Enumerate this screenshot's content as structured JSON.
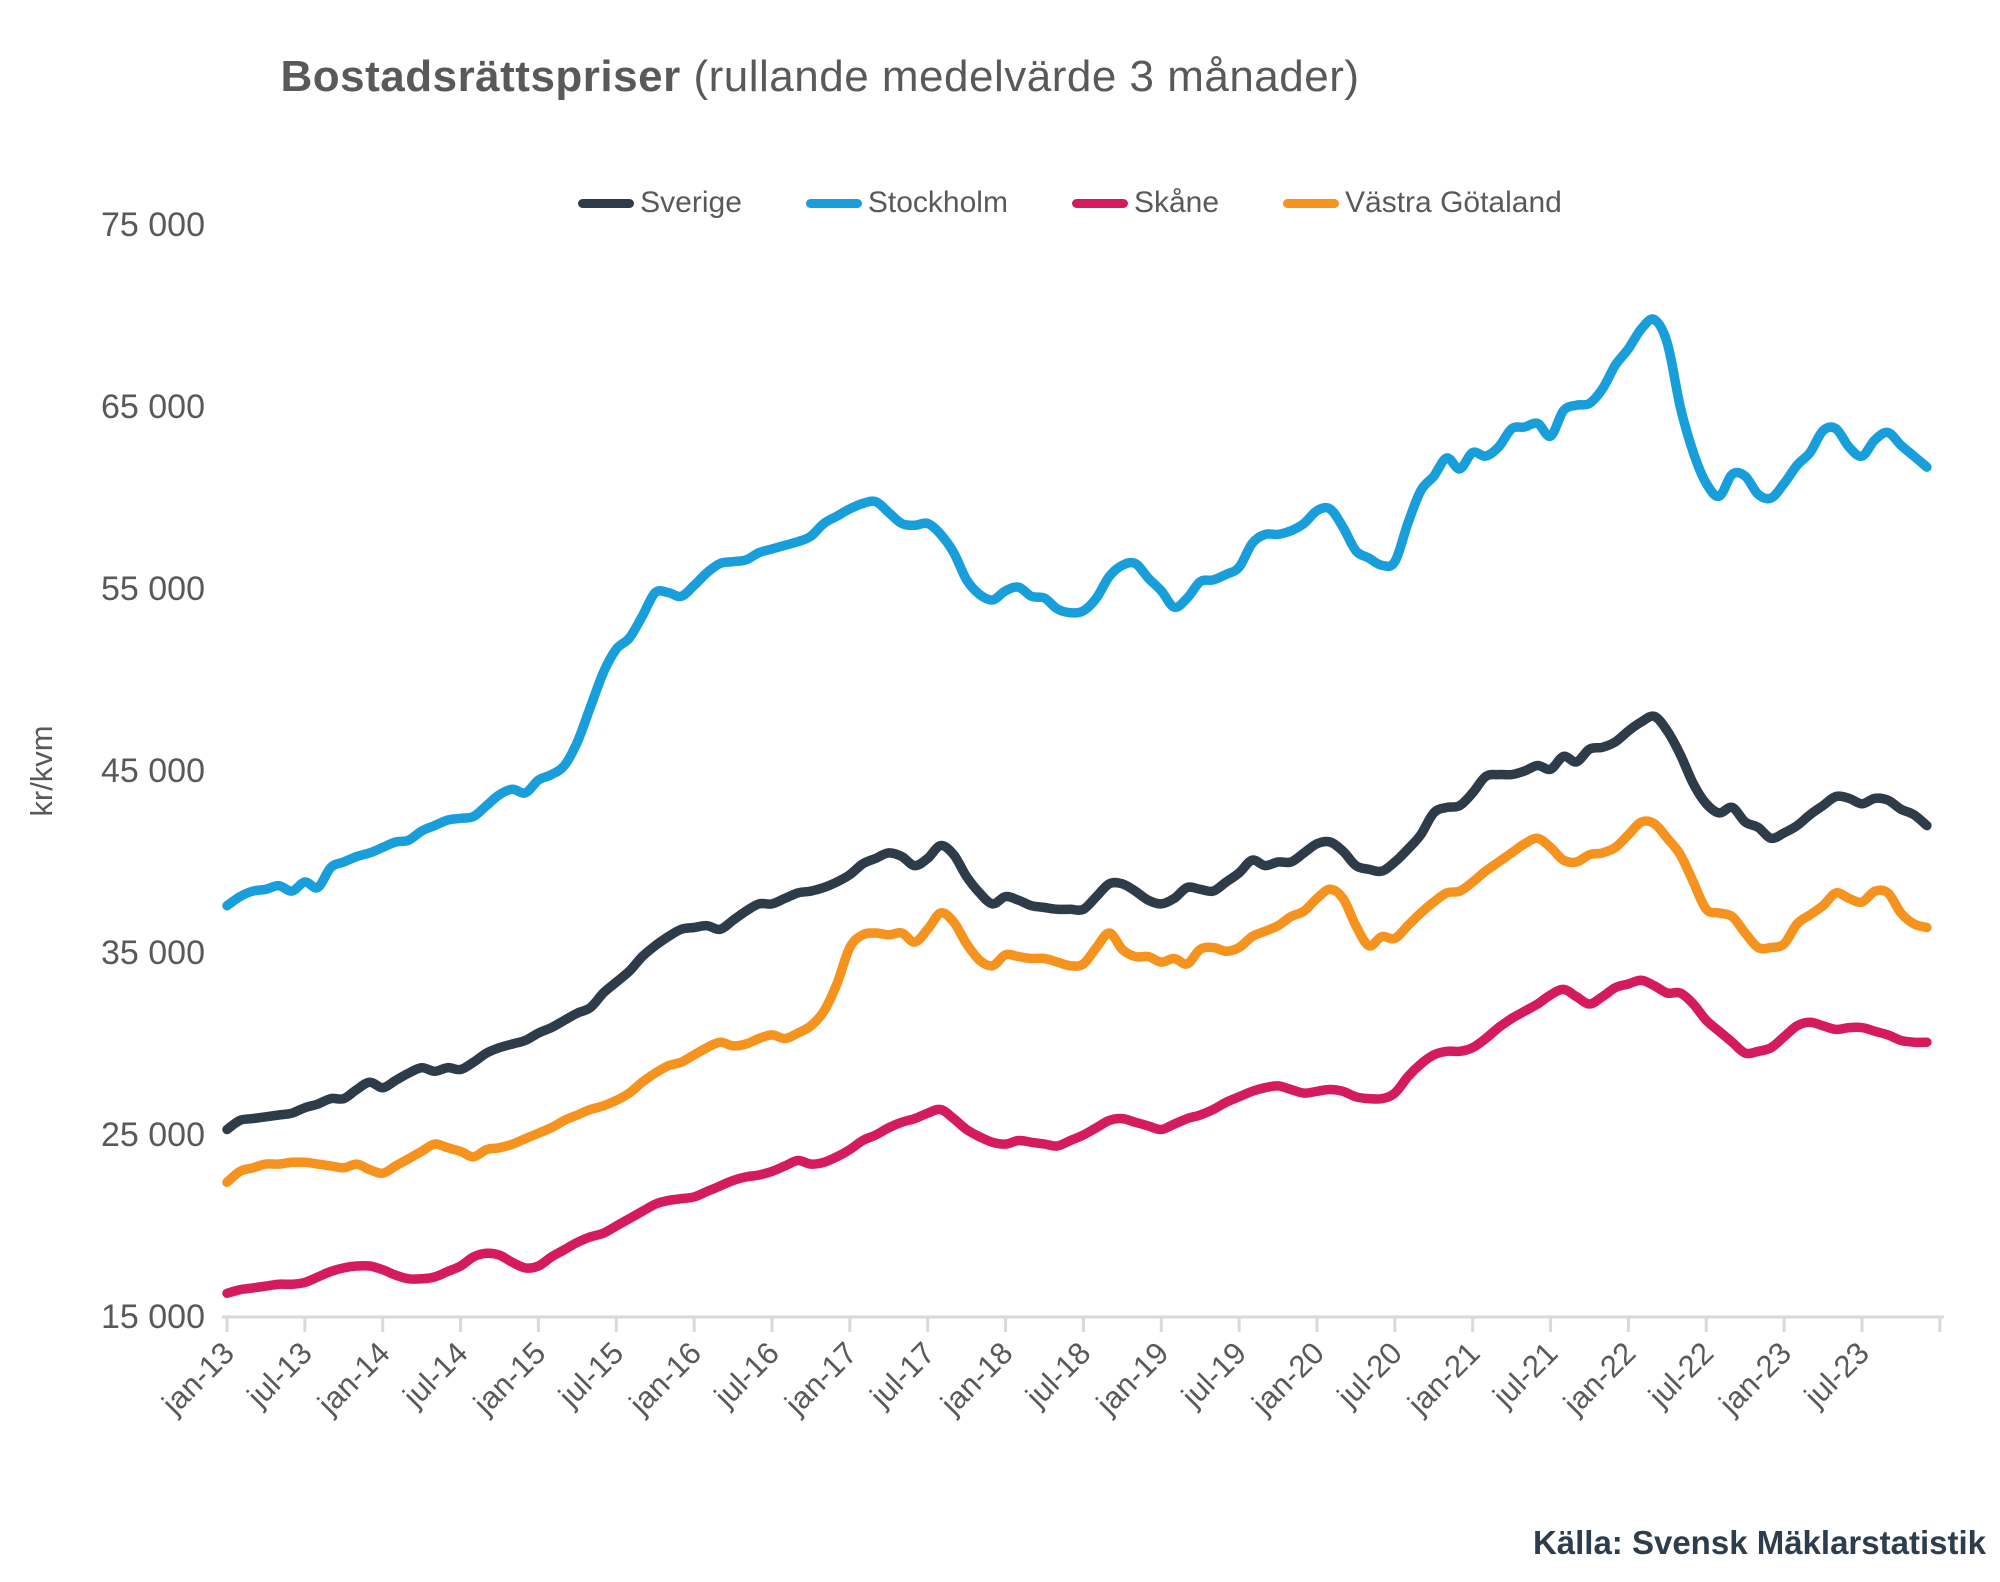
{
  "title": {
    "bold": "Bostadsrättspriser",
    "rest": " (rullande medelvärde 3 månader)"
  },
  "source": "Källa: Svensk Mäklarstatistik",
  "legend": {
    "items": [
      {
        "label": "Sverige",
        "color": "#2e3b48"
      },
      {
        "label": "Stockholm",
        "color": "#189fdb"
      },
      {
        "label": "Skåne",
        "color": "#d51a5e"
      },
      {
        "label": "Västra Götaland",
        "color": "#f6921e"
      }
    ]
  },
  "y_axis": {
    "unit_label": "kr/kvm",
    "ticks": [
      {
        "label": "15 000",
        "value": 15000
      },
      {
        "label": "25 000",
        "value": 25000
      },
      {
        "label": "35 000",
        "value": 35000
      },
      {
        "label": "45 000",
        "value": 45000
      },
      {
        "label": "55 000",
        "value": 55000
      },
      {
        "label": "65 000",
        "value": 65000
      },
      {
        "label": "75 000",
        "value": 75000
      }
    ]
  },
  "x_axis": {
    "tick_labels": [
      "jan-13",
      "jul-13",
      "jan-14",
      "jul-14",
      "jan-15",
      "jul-15",
      "jan-16",
      "jul-16",
      "jan-17",
      "jul-17",
      "jan-18",
      "jul-18",
      "jan-19",
      "jul-19",
      "jan-20",
      "jul-20",
      "jan-21",
      "jul-21",
      "jan-22",
      "jul-22",
      "jan-23",
      "jul-23"
    ]
  },
  "chart_data": {
    "type": "line",
    "title": "Bostadsrättspriser (rullande medelvärde 3 månader)",
    "ylabel": "kr/kvm",
    "ylim": [
      15000,
      75000
    ],
    "x_start": "2013-01",
    "x_end": "2023-12",
    "x_interval": "monthly",
    "grid": false,
    "legend_position": "top",
    "series": [
      {
        "name": "Sverige",
        "color": "#2e3b48",
        "values": [
          25300,
          25800,
          25900,
          26000,
          26100,
          26200,
          26500,
          26700,
          27000,
          27000,
          27500,
          27900,
          27600,
          28000,
          28400,
          28700,
          28500,
          28700,
          28600,
          29000,
          29500,
          29800,
          30000,
          30200,
          30600,
          30900,
          31300,
          31700,
          32000,
          32800,
          33400,
          34000,
          34800,
          35400,
          35900,
          36300,
          36400,
          36500,
          36300,
          36800,
          37300,
          37700,
          37700,
          38000,
          38300,
          38400,
          38600,
          38900,
          39300,
          39900,
          40200,
          40500,
          40300,
          39800,
          40200,
          40900,
          40400,
          39200,
          38300,
          37700,
          38100,
          37900,
          37600,
          37500,
          37400,
          37400,
          37400,
          38100,
          38800,
          38800,
          38400,
          37900,
          37700,
          38000,
          38600,
          38500,
          38400,
          38900,
          39400,
          40100,
          39800,
          40000,
          40000,
          40500,
          41000,
          41100,
          40600,
          39800,
          39600,
          39500,
          40000,
          40700,
          41500,
          42700,
          43000,
          43100,
          43800,
          44700,
          44800,
          44800,
          45000,
          45300,
          45100,
          45800,
          45500,
          46200,
          46300,
          46600,
          47200,
          47700,
          48000,
          47200,
          45900,
          44300,
          43200,
          42700,
          43000,
          42200,
          41900,
          41300,
          41600,
          42000,
          42600,
          43100,
          43600,
          43500,
          43200,
          43500,
          43400,
          42900,
          42600,
          42000
        ]
      },
      {
        "name": "Stockholm",
        "color": "#189fdb",
        "values": [
          37600,
          38100,
          38400,
          38500,
          38700,
          38400,
          38900,
          38600,
          39700,
          40000,
          40300,
          40500,
          40800,
          41100,
          41200,
          41700,
          42000,
          42300,
          42400,
          42500,
          43100,
          43700,
          44000,
          43800,
          44500,
          44800,
          45300,
          46600,
          48500,
          50400,
          51700,
          52300,
          53500,
          54800,
          54800,
          54600,
          55200,
          55900,
          56400,
          56500,
          56600,
          57000,
          57200,
          57400,
          57600,
          57900,
          58600,
          59000,
          59400,
          59700,
          59800,
          59200,
          58600,
          58500,
          58600,
          58000,
          57000,
          55500,
          54700,
          54400,
          54900,
          55100,
          54600,
          54500,
          53900,
          53700,
          53800,
          54500,
          55700,
          56300,
          56400,
          55600,
          54900,
          54000,
          54500,
          55400,
          55500,
          55800,
          56200,
          57500,
          58000,
          58000,
          58200,
          58600,
          59300,
          59400,
          58400,
          57100,
          56700,
          56300,
          56500,
          58600,
          60400,
          61200,
          62200,
          61600,
          62500,
          62300,
          62800,
          63800,
          63900,
          64100,
          63400,
          64800,
          65100,
          65200,
          66000,
          67300,
          68200,
          69300,
          69800,
          68500,
          65000,
          62500,
          60800,
          60100,
          61300,
          61200,
          60200,
          60000,
          60800,
          61800,
          62500,
          63700,
          63800,
          62800,
          62300,
          63200,
          63600,
          62900,
          62300,
          61700
        ]
      },
      {
        "name": "Skåne",
        "color": "#d51a5e",
        "values": [
          16300,
          16500,
          16600,
          16700,
          16800,
          16800,
          16900,
          17200,
          17500,
          17700,
          17800,
          17800,
          17600,
          17300,
          17100,
          17100,
          17200,
          17500,
          17800,
          18300,
          18500,
          18400,
          18000,
          17700,
          17800,
          18300,
          18700,
          19100,
          19400,
          19600,
          20000,
          20400,
          20800,
          21200,
          21400,
          21500,
          21600,
          21900,
          22200,
          22500,
          22700,
          22800,
          23000,
          23300,
          23600,
          23400,
          23500,
          23800,
          24200,
          24700,
          25000,
          25400,
          25700,
          25900,
          26200,
          26400,
          25900,
          25300,
          24900,
          24600,
          24500,
          24700,
          24600,
          24500,
          24400,
          24700,
          25000,
          25400,
          25800,
          25900,
          25700,
          25500,
          25300,
          25600,
          25900,
          26100,
          26400,
          26800,
          27100,
          27400,
          27600,
          27700,
          27500,
          27300,
          27400,
          27500,
          27400,
          27100,
          27000,
          27000,
          27300,
          28200,
          28900,
          29400,
          29600,
          29600,
          29800,
          30300,
          30900,
          31400,
          31800,
          32200,
          32700,
          33000,
          32600,
          32200,
          32600,
          33100,
          33300,
          33500,
          33200,
          32800,
          32800,
          32200,
          31300,
          30700,
          30100,
          29500,
          29600,
          29800,
          30400,
          31000,
          31200,
          31000,
          30800,
          30900,
          30900,
          30700,
          30500,
          30200,
          30100,
          30100
        ]
      },
      {
        "name": "Västra Götaland",
        "color": "#f6921e",
        "values": [
          22400,
          23000,
          23200,
          23400,
          23400,
          23500,
          23500,
          23400,
          23300,
          23200,
          23400,
          23100,
          22900,
          23300,
          23700,
          24100,
          24500,
          24300,
          24100,
          23800,
          24200,
          24300,
          24500,
          24800,
          25100,
          25400,
          25800,
          26100,
          26400,
          26600,
          26900,
          27300,
          27900,
          28400,
          28800,
          29000,
          29400,
          29800,
          30100,
          29900,
          30000,
          30300,
          30500,
          30300,
          30600,
          31000,
          31800,
          33300,
          35300,
          36000,
          36100,
          36000,
          36100,
          35600,
          36300,
          37200,
          36700,
          35500,
          34600,
          34300,
          34900,
          34800,
          34700,
          34700,
          34500,
          34300,
          34400,
          35300,
          36100,
          35200,
          34800,
          34800,
          34500,
          34700,
          34400,
          35200,
          35300,
          35100,
          35300,
          35900,
          36200,
          36500,
          37000,
          37300,
          38000,
          38500,
          38000,
          36500,
          35400,
          35900,
          35800,
          36500,
          37200,
          37800,
          38300,
          38400,
          38900,
          39500,
          40000,
          40500,
          41000,
          41300,
          40800,
          40100,
          40000,
          40400,
          40500,
          40800,
          41500,
          42200,
          42100,
          41300,
          40400,
          38900,
          37400,
          37200,
          37000,
          36100,
          35300,
          35300,
          35500,
          36600,
          37100,
          37600,
          38300,
          38000,
          37800,
          38400,
          38300,
          37200,
          36600,
          36400
        ]
      }
    ]
  },
  "style": {
    "axis_line_color": "#d9d9d9",
    "axis_text_color": "#595959",
    "line_width": 9.5
  }
}
